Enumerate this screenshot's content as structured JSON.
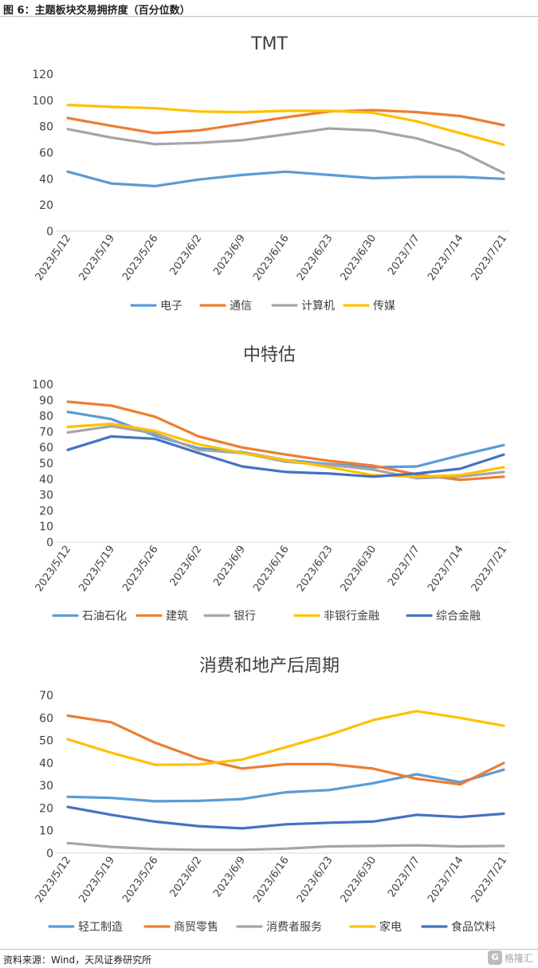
{
  "figure_title": "图 6：主题板块交易拥挤度（百分位数）",
  "source": "资料来源：Wind，天风证券研究所",
  "watermark": {
    "text": "格隆汇",
    "logo": "G"
  },
  "chart_data": [
    {
      "type": "line",
      "title": "TMT",
      "x": [
        "2023/5/12",
        "2023/5/19",
        "2023/5/26",
        "2023/6/2",
        "2023/6/9",
        "2023/6/16",
        "2023/6/23",
        "2023/6/30",
        "2023/7/7",
        "2023/7/14",
        "2023/7/21"
      ],
      "ylim": [
        0,
        120
      ],
      "yticks": [
        0,
        20,
        40,
        60,
        80,
        100,
        120
      ],
      "legend_position": "bottom",
      "grid": false,
      "series": [
        {
          "name": "电子",
          "color": "#5b9bd5",
          "values": [
            45.5,
            36.5,
            34.5,
            39.5,
            43,
            45.5,
            43,
            40.5,
            41.5,
            41.5,
            40
          ]
        },
        {
          "name": "通信",
          "color": "#ed7d31",
          "values": [
            86.5,
            80.5,
            75,
            77,
            82,
            87,
            91.5,
            92.5,
            91,
            88,
            81
          ]
        },
        {
          "name": "计算机",
          "color": "#a5a5a5",
          "values": [
            78,
            71.5,
            66.5,
            67.5,
            69.5,
            74,
            78.5,
            77,
            71,
            61,
            44.5
          ]
        },
        {
          "name": "传媒",
          "color": "#ffc000",
          "values": [
            96.5,
            95,
            94,
            91.5,
            91,
            92,
            92,
            90.5,
            84,
            75,
            66
          ]
        }
      ]
    },
    {
      "type": "line",
      "title": "中特估",
      "x": [
        "2023/5/12",
        "2023/5/19",
        "2023/5/26",
        "2023/6/2",
        "2023/6/9",
        "2023/6/16",
        "2023/6/23",
        "2023/6/30",
        "2023/7/7",
        "2023/7/14",
        "2023/7/21"
      ],
      "ylim": [
        0,
        100
      ],
      "yticks": [
        0,
        10,
        20,
        30,
        40,
        50,
        60,
        70,
        80,
        90,
        100
      ],
      "legend_position": "bottom",
      "grid": false,
      "series": [
        {
          "name": "石油石化",
          "color": "#5b9bd5",
          "values": [
            82.5,
            78,
            67.5,
            59.5,
            57,
            52,
            49.5,
            47.5,
            48,
            55,
            61.5
          ]
        },
        {
          "name": "建筑",
          "color": "#ed7d31",
          "values": [
            89,
            86.5,
            79.5,
            67,
            60,
            55.5,
            51.5,
            48.5,
            43,
            39.5,
            41.5
          ]
        },
        {
          "name": "银行",
          "color": "#a5a5a5",
          "values": [
            69.5,
            73.5,
            69,
            58.5,
            56.5,
            51,
            49,
            46,
            40.5,
            41.5,
            44.5
          ]
        },
        {
          "name": "非银行金融",
          "color": "#ffc000",
          "values": [
            73,
            75,
            70.5,
            62,
            56.5,
            52,
            47.5,
            42.5,
            41.5,
            42.5,
            47.5
          ]
        },
        {
          "name": "综合金融",
          "color": "#4472c4",
          "values": [
            58.5,
            67,
            65.5,
            56.5,
            48,
            44.5,
            43.5,
            41.5,
            43.5,
            46.5,
            55.5
          ]
        }
      ]
    },
    {
      "type": "line",
      "title": "消费和地产后周期",
      "x": [
        "2023/5/12",
        "2023/5/19",
        "2023/5/26",
        "2023/6/2",
        "2023/6/9",
        "2023/6/16",
        "2023/6/23",
        "2023/6/30",
        "2023/7/7",
        "2023/7/14",
        "2023/7/21"
      ],
      "ylim": [
        0,
        70
      ],
      "yticks": [
        0,
        10,
        20,
        30,
        40,
        50,
        60,
        70
      ],
      "legend_position": "bottom",
      "grid": false,
      "series": [
        {
          "name": "轻工制造",
          "color": "#5b9bd5",
          "values": [
            25,
            24.5,
            23,
            23.2,
            24,
            27,
            28,
            31,
            35,
            31.5,
            37
          ]
        },
        {
          "name": "商贸零售",
          "color": "#ed7d31",
          "values": [
            61,
            58,
            49,
            42,
            37.5,
            39.5,
            39.5,
            37.5,
            33,
            30.5,
            40
          ]
        },
        {
          "name": "消费者服务",
          "color": "#a5a5a5",
          "values": [
            4.5,
            2.8,
            1.8,
            1.5,
            1.5,
            2,
            3,
            3.2,
            3.5,
            3,
            3.2
          ]
        },
        {
          "name": "家电",
          "color": "#ffc000",
          "values": [
            50.5,
            44.5,
            39.2,
            39.3,
            41.5,
            47,
            52.5,
            59,
            63,
            60,
            56.5
          ]
        },
        {
          "name": "食品饮料",
          "color": "#4472c4",
          "values": [
            20.5,
            17,
            14,
            12,
            11,
            12.8,
            13.5,
            14,
            17,
            16,
            17.5
          ]
        }
      ]
    }
  ]
}
